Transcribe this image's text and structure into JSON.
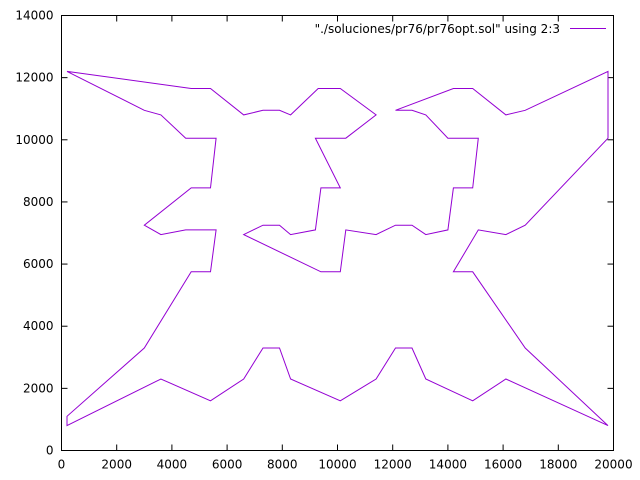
{
  "chart_data": {
    "type": "line",
    "title": "",
    "xlabel": "",
    "ylabel": "",
    "xlim": [
      0,
      20000
    ],
    "ylim": [
      0,
      14000
    ],
    "xticks": [
      0,
      2000,
      4000,
      6000,
      8000,
      10000,
      12000,
      14000,
      16000,
      18000,
      20000
    ],
    "yticks": [
      0,
      2000,
      4000,
      6000,
      8000,
      10000,
      12000,
      14000
    ],
    "grid": false,
    "legend_position": "top-right",
    "series": [
      {
        "name": "\"./soluciones/pr76/pr76opt.sol\" using 2:3",
        "color": "#9400d3",
        "points": [
          [
            200,
            12200
          ],
          [
            4700,
            11650
          ],
          [
            5400,
            11650
          ],
          [
            6600,
            10800
          ],
          [
            7300,
            10950
          ],
          [
            7900,
            10950
          ],
          [
            8300,
            10800
          ],
          [
            9300,
            11650
          ],
          [
            10100,
            11650
          ],
          [
            11400,
            10800
          ],
          [
            10300,
            10050
          ],
          [
            9200,
            10050
          ],
          [
            10100,
            8450
          ],
          [
            9400,
            8450
          ],
          [
            9200,
            7100
          ],
          [
            8300,
            6950
          ],
          [
            7900,
            7250
          ],
          [
            7300,
            7250
          ],
          [
            6600,
            6950
          ],
          [
            9400,
            5750
          ],
          [
            10100,
            5750
          ],
          [
            10300,
            7100
          ],
          [
            11400,
            6950
          ],
          [
            12100,
            7250
          ],
          [
            12700,
            7250
          ],
          [
            13200,
            6950
          ],
          [
            14000,
            7100
          ],
          [
            14200,
            8450
          ],
          [
            14900,
            8450
          ],
          [
            15100,
            10050
          ],
          [
            14000,
            10050
          ],
          [
            13200,
            10800
          ],
          [
            12700,
            10950
          ],
          [
            12100,
            10950
          ],
          [
            14200,
            11650
          ],
          [
            14900,
            11650
          ],
          [
            16100,
            10800
          ],
          [
            16800,
            10950
          ],
          [
            19800,
            12200
          ],
          [
            19800,
            10050
          ],
          [
            16800,
            7250
          ],
          [
            16100,
            6950
          ],
          [
            15100,
            7100
          ],
          [
            14200,
            5750
          ],
          [
            14900,
            5750
          ],
          [
            16800,
            3300
          ],
          [
            19800,
            800
          ],
          [
            16100,
            2300
          ],
          [
            14900,
            1600
          ],
          [
            13200,
            2300
          ],
          [
            12700,
            3300
          ],
          [
            12100,
            3300
          ],
          [
            11400,
            2300
          ],
          [
            10100,
            1600
          ],
          [
            8300,
            2300
          ],
          [
            7900,
            3300
          ],
          [
            7300,
            3300
          ],
          [
            6600,
            2300
          ],
          [
            5400,
            1600
          ],
          [
            3600,
            2300
          ],
          [
            200,
            800
          ],
          [
            200,
            1100
          ],
          [
            3000,
            3300
          ],
          [
            4700,
            5750
          ],
          [
            5400,
            5750
          ],
          [
            5600,
            7100
          ],
          [
            4500,
            7100
          ],
          [
            3600,
            6950
          ],
          [
            3000,
            7250
          ],
          [
            4700,
            8450
          ],
          [
            5400,
            8450
          ],
          [
            5600,
            10050
          ],
          [
            4500,
            10050
          ],
          [
            3600,
            10800
          ],
          [
            3000,
            10950
          ],
          [
            200,
            12200
          ]
        ]
      }
    ]
  }
}
